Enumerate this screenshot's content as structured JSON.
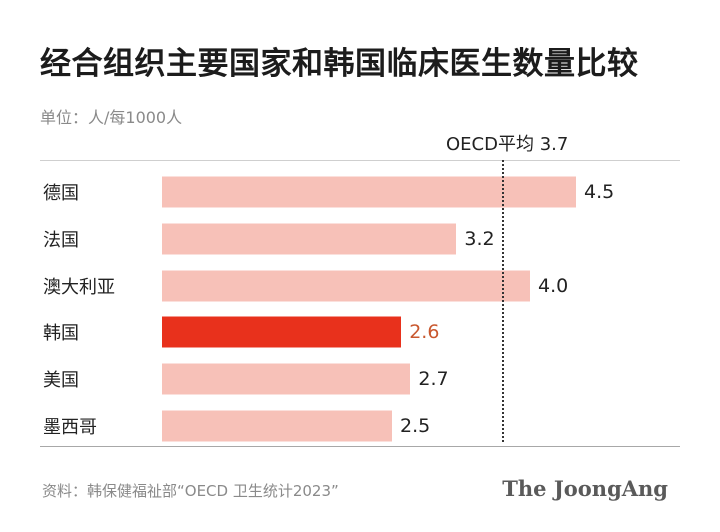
{
  "title": "经合组织主要国家和韩国临床医生数量比较",
  "unit_label": "单位：人/每1000人",
  "reference": {
    "label": "OECD平均 3.7",
    "value": 3.7
  },
  "source": "资料：韩保健福祉部“OECD 卫生统计2023”",
  "logo": "The JoongAng",
  "colors": {
    "bar": "#f7c1b8",
    "highlight": "#e8311c",
    "highlight_text": "#c9582f",
    "text": "#222222"
  },
  "chart_data": {
    "type": "bar",
    "orientation": "horizontal",
    "categories": [
      "德国",
      "法国",
      "澳大利亚",
      "韩国",
      "美国",
      "墨西哥"
    ],
    "values": [
      4.5,
      3.2,
      4.0,
      2.6,
      2.7,
      2.5
    ],
    "value_labels": [
      "4.5",
      "3.2",
      "4.0",
      "2.6",
      "2.7",
      "2.5"
    ],
    "highlight": "韩国",
    "reference_line": 3.7,
    "title": "经合组织主要国家和韩国临床医生数量比较",
    "xlabel": "",
    "ylabel": ""
  }
}
